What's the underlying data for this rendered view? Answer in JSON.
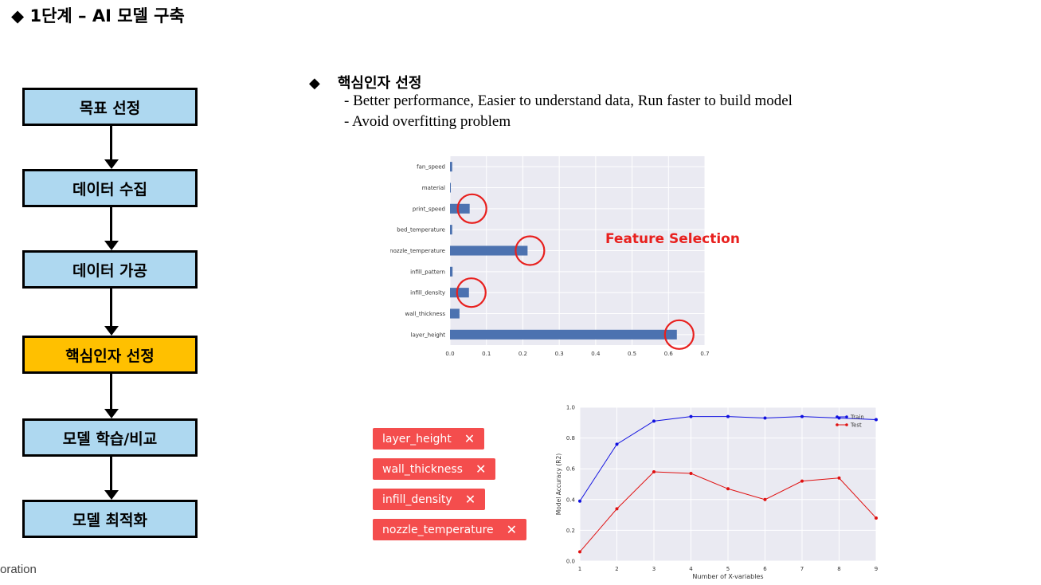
{
  "title": "◆ 1단계 – AI 모델 구축",
  "footer": "oration",
  "flow": {
    "steps": [
      "목표 선정",
      "데이터 수집",
      "데이터 가공",
      "핵심인자 선정",
      "모델 학습/비교",
      "모델 최적화"
    ],
    "active_index": 3
  },
  "section": {
    "diamond": "◆",
    "heading": "핵심인자 선정",
    "bullets": [
      "- Better performance, Easier to understand data, Run faster  to build model",
      "- Avoid overfitting problem"
    ]
  },
  "feature_label": "Feature Selection",
  "tags": [
    "layer_height",
    "wall_thickness",
    "infill_density",
    "nozzle_temperature"
  ],
  "tag_close": "✕",
  "colors": {
    "accent_red": "#e8201e",
    "bar_blue": "#4c72b0",
    "flow_blue": "#aed8f0",
    "flow_active": "#ffc000"
  },
  "chart_data": [
    {
      "type": "bar",
      "orientation": "horizontal",
      "categories": [
        "fan_speed",
        "material",
        "print_speed",
        "bed_temperature",
        "nozzle_temperature",
        "infill_pattern",
        "infill_density",
        "wall_thickness",
        "layer_height"
      ],
      "values": [
        0.006,
        0.002,
        0.054,
        0.006,
        0.213,
        0.007,
        0.052,
        0.026,
        0.623
      ],
      "xlim": [
        0,
        0.7
      ],
      "xticks": [
        "0.0",
        "0.1",
        "0.2",
        "0.3",
        "0.4",
        "0.5",
        "0.6",
        "0.7"
      ],
      "highlighted": [
        "print_speed",
        "nozzle_temperature",
        "infill_density",
        "layer_height"
      ],
      "grid": true
    },
    {
      "type": "line",
      "x": [
        1,
        2,
        3,
        4,
        5,
        6,
        7,
        8,
        9
      ],
      "xticks": [
        "1",
        "2",
        "3",
        "4",
        "5",
        "6",
        "7",
        "8",
        "9"
      ],
      "yticks": [
        "0.0",
        "0.2",
        "0.4",
        "0.6",
        "0.8",
        "1.0"
      ],
      "series": [
        {
          "name": "Train",
          "values": [
            0.39,
            0.76,
            0.91,
            0.94,
            0.94,
            0.93,
            0.94,
            0.93,
            0.92
          ],
          "color": "#1010e0"
        },
        {
          "name": "Test",
          "values": [
            0.06,
            0.34,
            0.58,
            0.57,
            0.47,
            0.4,
            0.52,
            0.54,
            0.28
          ],
          "color": "#e01010"
        }
      ],
      "xlabel": "Number of X-variables",
      "ylabel": "Model Accuracy (R2)",
      "xlim": [
        1,
        9
      ],
      "ylim": [
        0,
        1.0
      ],
      "legend": "top-right",
      "grid": true
    }
  ]
}
